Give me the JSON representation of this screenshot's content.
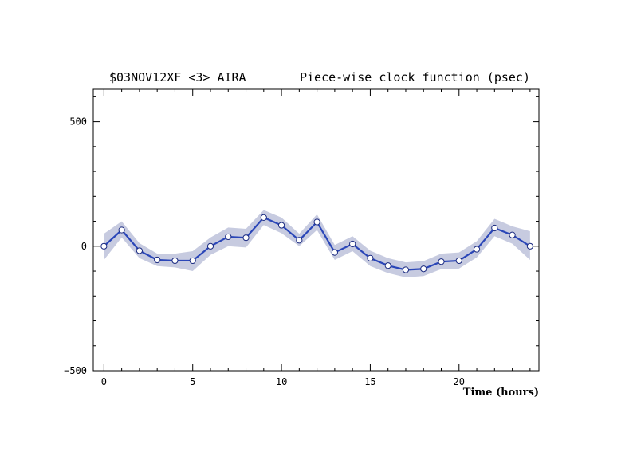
{
  "chart_data": {
    "type": "line",
    "title_left": "$03NOV12XF <3>  AIRA",
    "title_right": "Piece-wise clock function (psec)",
    "xlabel": "Time (hours)",
    "ylabel": "",
    "xlim": [
      -0.6,
      24.5
    ],
    "ylim": [
      -500,
      630
    ],
    "x_ticks": [
      0,
      5,
      10,
      15,
      20
    ],
    "y_ticks": [
      -500,
      0,
      500
    ],
    "colors": {
      "line": "#2a46b8",
      "band": "#c7cbe0",
      "marker_fill": "#ffffff"
    },
    "series": [
      {
        "x": [
          0,
          1,
          2,
          3,
          4,
          5,
          6,
          7,
          8,
          9,
          10,
          11,
          12,
          13,
          14,
          15,
          16,
          17,
          18,
          19,
          20,
          21,
          22,
          23,
          24
        ],
        "y": [
          0,
          65,
          -18,
          -55,
          -58,
          -58,
          0,
          38,
          34,
          115,
          84,
          24,
          97,
          -25,
          9,
          -48,
          -78,
          -95,
          -91,
          -62,
          -58,
          -12,
          73,
          45,
          0
        ],
        "band_upper": [
          50,
          100,
          12,
          -30,
          -30,
          -20,
          35,
          75,
          70,
          145,
          115,
          50,
          128,
          5,
          40,
          -18,
          -48,
          -65,
          -60,
          -30,
          -25,
          20,
          110,
          80,
          60
        ],
        "band_lower": [
          -55,
          35,
          -48,
          -80,
          -85,
          -100,
          -35,
          0,
          -5,
          85,
          52,
          0,
          65,
          -55,
          -20,
          -80,
          -108,
          -125,
          -120,
          -92,
          -90,
          -45,
          40,
          10,
          -55
        ]
      }
    ]
  }
}
